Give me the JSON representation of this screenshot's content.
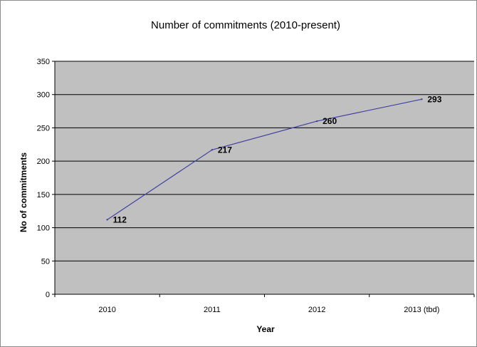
{
  "chart_data": {
    "type": "line",
    "title": "Number of commitments (2010-present)",
    "xlabel": "Year",
    "ylabel": "No of commitments",
    "categories": [
      "2010",
      "2011",
      "2012",
      "2013 (tbd)"
    ],
    "series": [
      {
        "values": [
          112,
          217,
          260,
          293
        ],
        "color": "#4040a0"
      }
    ],
    "data_labels": [
      "112",
      "217",
      "260",
      "293"
    ],
    "ylim": [
      0,
      350
    ],
    "yticks": [
      0,
      50,
      100,
      150,
      200,
      250,
      300,
      350
    ],
    "ytick_labels": [
      "0",
      "50",
      "100",
      "150",
      "200",
      "250",
      "300",
      "350"
    ],
    "grid": true,
    "plot_background": "#c0c0c0",
    "gridline_color": "#000000",
    "legend": "none"
  }
}
